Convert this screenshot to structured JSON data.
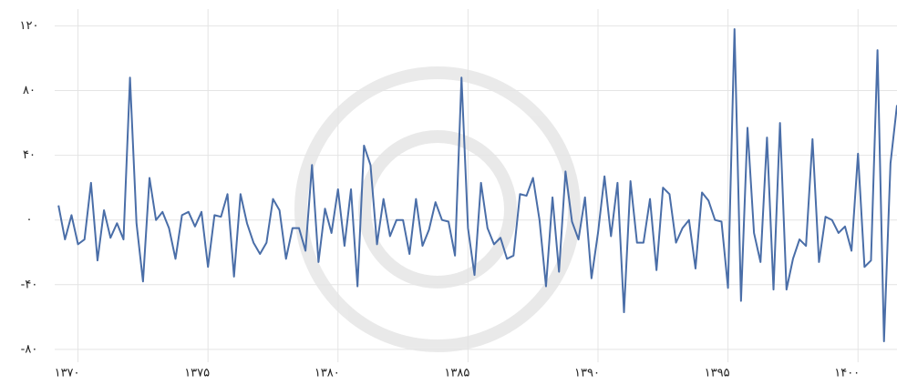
{
  "chart_data": {
    "type": "line",
    "x": [
      1369.25,
      1369.5,
      1369.75,
      1370,
      1370.25,
      1370.5,
      1370.75,
      1371,
      1371.25,
      1371.5,
      1371.75,
      1372,
      1372.25,
      1372.5,
      1372.75,
      1373,
      1373.25,
      1373.5,
      1373.75,
      1374,
      1374.25,
      1374.5,
      1374.75,
      1375,
      1375.25,
      1375.5,
      1375.75,
      1376,
      1376.25,
      1376.5,
      1376.75,
      1377,
      1377.25,
      1377.5,
      1377.75,
      1378,
      1378.25,
      1378.5,
      1378.75,
      1379,
      1379.25,
      1379.5,
      1379.75,
      1380,
      1380.25,
      1380.5,
      1380.75,
      1381,
      1381.25,
      1381.5,
      1381.75,
      1382,
      1382.25,
      1382.5,
      1382.75,
      1383,
      1383.25,
      1383.5,
      1383.75,
      1384,
      1384.25,
      1384.5,
      1384.75,
      1385,
      1385.25,
      1385.5,
      1385.75,
      1386,
      1386.25,
      1386.5,
      1386.75,
      1387,
      1387.25,
      1387.5,
      1387.75,
      1388,
      1388.25,
      1388.5,
      1388.75,
      1389,
      1389.25,
      1389.5,
      1389.75,
      1390,
      1390.25,
      1390.5,
      1390.75,
      1391,
      1391.25,
      1391.5,
      1391.75,
      1392,
      1392.25,
      1392.5,
      1392.75,
      1393,
      1393.25,
      1393.5,
      1393.75,
      1394,
      1394.25,
      1394.5,
      1394.75,
      1395,
      1395.25,
      1395.5,
      1395.75,
      1396,
      1396.25,
      1396.5,
      1396.75,
      1397,
      1397.25,
      1397.5,
      1397.75,
      1398,
      1398.25,
      1398.5,
      1398.75,
      1399,
      1399.25,
      1399.5,
      1399.75,
      1400,
      1400.25,
      1400.5,
      1400.75,
      1401,
      1401.25,
      1401.5
    ],
    "series": [
      {
        "color": "#4a6ea8",
        "values": [
          9,
          -12,
          3,
          -15,
          -12,
          23,
          -25,
          6,
          -11,
          -2,
          -12,
          88,
          -2,
          -38,
          26,
          0,
          5,
          -5,
          -24,
          3,
          5,
          -4,
          5,
          -29,
          3,
          2,
          16,
          -35,
          16,
          -2,
          -14,
          -21,
          -14,
          13,
          6,
          -24,
          -5,
          -5,
          -19,
          34,
          -26,
          7,
          -8,
          19,
          -16,
          19,
          -41,
          46,
          34,
          -15,
          13,
          -10,
          0,
          0,
          -21,
          13,
          -16,
          -6,
          11,
          0,
          -1,
          -22,
          88,
          -5,
          -34,
          23,
          -5,
          -15,
          -11,
          -24,
          -22,
          16,
          15,
          26,
          0,
          -41,
          14,
          -32,
          30,
          -1,
          -12,
          14,
          -36,
          -8,
          27,
          -10,
          23,
          -57,
          24,
          -14,
          -14,
          13,
          -31,
          20,
          16,
          -14,
          -5,
          0,
          -30,
          17,
          12,
          0,
          -1,
          -42,
          118,
          -50,
          57,
          -8,
          -26,
          51,
          -43,
          60,
          -43,
          -24,
          -12,
          -16,
          50,
          -26,
          2,
          0,
          -8,
          -4,
          -19,
          41,
          -29,
          -25,
          105,
          -75,
          35,
          71
        ]
      }
    ],
    "xlim": [
      1367,
      1401.5
    ],
    "xticks": [
      {
        "value": 1370,
        "label": "۱۳۷۰"
      },
      {
        "value": 1375,
        "label": "۱۳۷۵"
      },
      {
        "value": 1380,
        "label": "۱۳۸۰"
      },
      {
        "value": 1385,
        "label": "۱۳۸۵"
      },
      {
        "value": 1390,
        "label": "۱۳۹۰"
      },
      {
        "value": 1395,
        "label": "۱۳۹۵"
      },
      {
        "value": 1400,
        "label": "۱۴۰۰"
      }
    ],
    "ylim": [
      -102,
      136
    ],
    "yticks": [
      {
        "value": 120,
        "label": "۱۲۰"
      },
      {
        "value": 80,
        "label": "۸۰"
      },
      {
        "value": 40,
        "label": "۴۰"
      },
      {
        "value": 0,
        "label": "۰"
      },
      {
        "value": -40,
        "label": "-۴۰"
      },
      {
        "value": -80,
        "label": "-۸۰"
      }
    ],
    "grid": true
  }
}
